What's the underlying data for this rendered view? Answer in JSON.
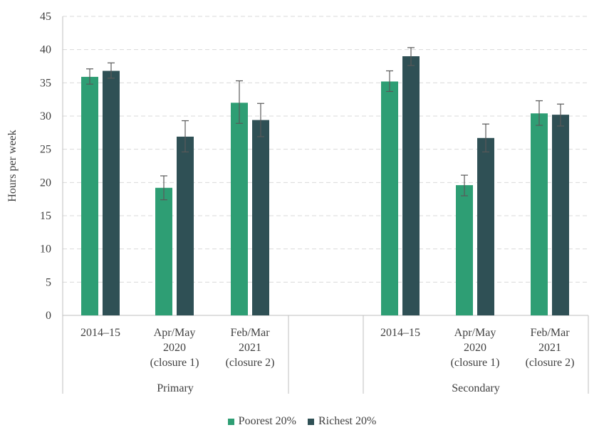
{
  "chart_data": {
    "type": "bar",
    "ylabel": "Hours per week",
    "ylim": [
      0,
      45
    ],
    "yticks": [
      0,
      5,
      10,
      15,
      20,
      25,
      30,
      35,
      40,
      45
    ],
    "grid": true,
    "groups": [
      {
        "name": "Primary",
        "categories": [
          "2014–15",
          "Apr/May 2020 (closure 1)",
          "Feb/Mar 2021 (closure 2)"
        ]
      },
      {
        "name": "Secondary",
        "categories": [
          "2014–15",
          "Apr/May 2020 (closure 1)",
          "Feb/Mar 2021 (closure 2)"
        ]
      }
    ],
    "category_label_lines": [
      [
        "2014–15"
      ],
      [
        "Apr/May",
        "2020",
        "(closure 1)"
      ],
      [
        "Feb/Mar",
        "2021",
        "(closure 2)"
      ]
    ],
    "series": [
      {
        "name": "Poorest 20%",
        "color": "#2e9e74",
        "values": [
          35.9,
          19.2,
          32.0,
          35.2,
          19.6,
          30.4
        ],
        "error_low": [
          34.8,
          17.4,
          28.9,
          33.7,
          18.0,
          28.6
        ],
        "error_high": [
          37.1,
          21.0,
          35.3,
          36.8,
          21.1,
          32.3
        ]
      },
      {
        "name": "Richest 20%",
        "color": "#2f5055",
        "values": [
          36.8,
          26.9,
          29.4,
          39.0,
          26.7,
          30.2
        ],
        "error_low": [
          35.7,
          24.6,
          26.9,
          37.6,
          24.6,
          28.5
        ],
        "error_high": [
          38.0,
          29.3,
          31.9,
          40.3,
          28.8,
          31.8
        ]
      }
    ],
    "legend_position": "bottom"
  }
}
